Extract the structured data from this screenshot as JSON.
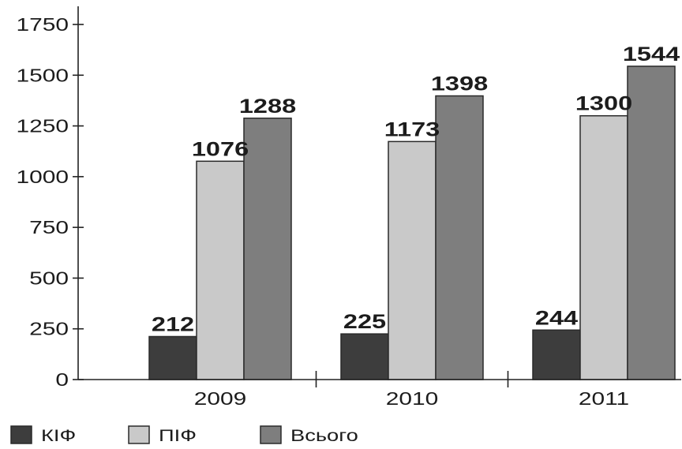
{
  "chart_data": {
    "type": "bar",
    "categories": [
      "2009",
      "2010",
      "2011"
    ],
    "series": [
      {
        "name": "КІФ",
        "color": "#3d3d3d",
        "values": [
          212,
          225,
          244
        ]
      },
      {
        "name": "ПІФ",
        "color": "#c9c9c9",
        "values": [
          1076,
          1173,
          1300
        ]
      },
      {
        "name": "Всього",
        "color": "#7e7e7e",
        "values": [
          1288,
          1398,
          1544
        ]
      }
    ],
    "ylim": [
      0,
      1750
    ],
    "yticks": [
      0,
      250,
      500,
      750,
      1000,
      1250,
      1500,
      1750
    ],
    "grid": false,
    "legend_position": "bottom-left"
  }
}
